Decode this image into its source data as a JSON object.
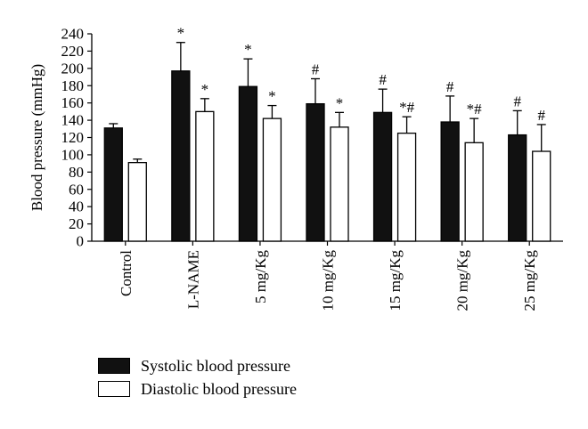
{
  "chart_data": {
    "type": "bar",
    "ylabel": "Blood pressure (mmHg)",
    "ylim": [
      0,
      240
    ],
    "yticks": [
      0,
      20,
      40,
      60,
      80,
      100,
      120,
      140,
      160,
      180,
      200,
      220,
      240
    ],
    "categories": [
      "Control",
      "L-NAME",
      "5 mg/Kg",
      "10 mg/Kg",
      "15 mg/Kg",
      "20 mg/Kg",
      "25 mg/Kg"
    ],
    "series": [
      {
        "name": "Systolic blood pressure",
        "color": "#111111",
        "values": [
          131,
          197,
          179,
          159,
          149,
          138,
          123
        ],
        "errors": [
          5,
          33,
          32,
          29,
          27,
          30,
          28
        ],
        "annotations": [
          "",
          "*",
          "*",
          "#",
          "#",
          "#",
          "#"
        ]
      },
      {
        "name": "Diastolic blood pressure",
        "color": "#ffffff",
        "values": [
          91,
          150,
          142,
          132,
          125,
          114,
          104
        ],
        "errors": [
          4,
          15,
          15,
          17,
          19,
          28,
          31
        ],
        "annotations": [
          "",
          "*",
          "*",
          "*",
          "*#",
          "*#",
          "#"
        ]
      }
    ]
  }
}
